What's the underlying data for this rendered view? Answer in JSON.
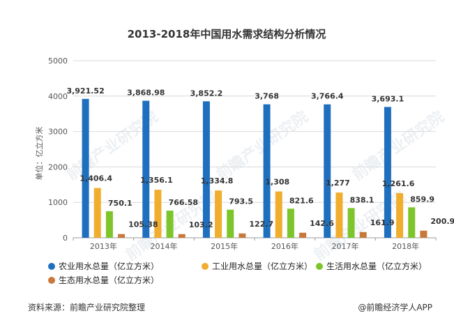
{
  "chart_data": {
    "type": "bar",
    "title": "2013-2018年中国用水需求结构分析情况",
    "ylabel": "单位：亿立方米",
    "xlabel": "",
    "ylim": [
      0,
      5000
    ],
    "yticks": [
      0,
      1000,
      2000,
      3000,
      4000,
      5000
    ],
    "categories": [
      "2013年",
      "2014年",
      "2015年",
      "2016年",
      "2017年",
      "2018年"
    ],
    "series": [
      {
        "name": "农业用水总量（亿立方米）",
        "color": "#1f6fbf",
        "values": [
          3921.52,
          3868.98,
          3852.2,
          3768,
          3766.4,
          3693.1
        ],
        "labels": [
          "3,921.52",
          "3,868.98",
          "3,852.2",
          "3,768",
          "3,766.4",
          "3,693.1"
        ]
      },
      {
        "name": "工业用水总量（亿立方米）",
        "color": "#f0ad2e",
        "values": [
          1406.4,
          1356.1,
          1334.8,
          1308,
          1277,
          1261.6
        ],
        "labels": [
          "1,406.4",
          "1,356.1",
          "1,334.8",
          "1,308",
          "1,277",
          "1,261.6"
        ]
      },
      {
        "name": "生活用水总量（亿立方米）",
        "color": "#7dc52b",
        "values": [
          750.1,
          766.58,
          793.5,
          821.6,
          838.1,
          859.9
        ],
        "labels": [
          "750.1",
          "766.58",
          "793.5",
          "821.6",
          "838.1",
          "859.9"
        ]
      },
      {
        "name": "生态用水总量（亿立方米）",
        "color": "#c8783a",
        "values": [
          105.38,
          103.2,
          122.7,
          142.6,
          161.9,
          200.9
        ],
        "labels": [
          "105.38",
          "103.2",
          "122.7",
          "142.6",
          "161.9",
          "200.9"
        ]
      }
    ],
    "grid": true,
    "legend": "bottom"
  },
  "footer": {
    "source": "资料来源：前瞻产业研究院整理",
    "credit": "@前瞻经济学人APP"
  },
  "watermark": {
    "text": "前瞻产业研究院"
  }
}
